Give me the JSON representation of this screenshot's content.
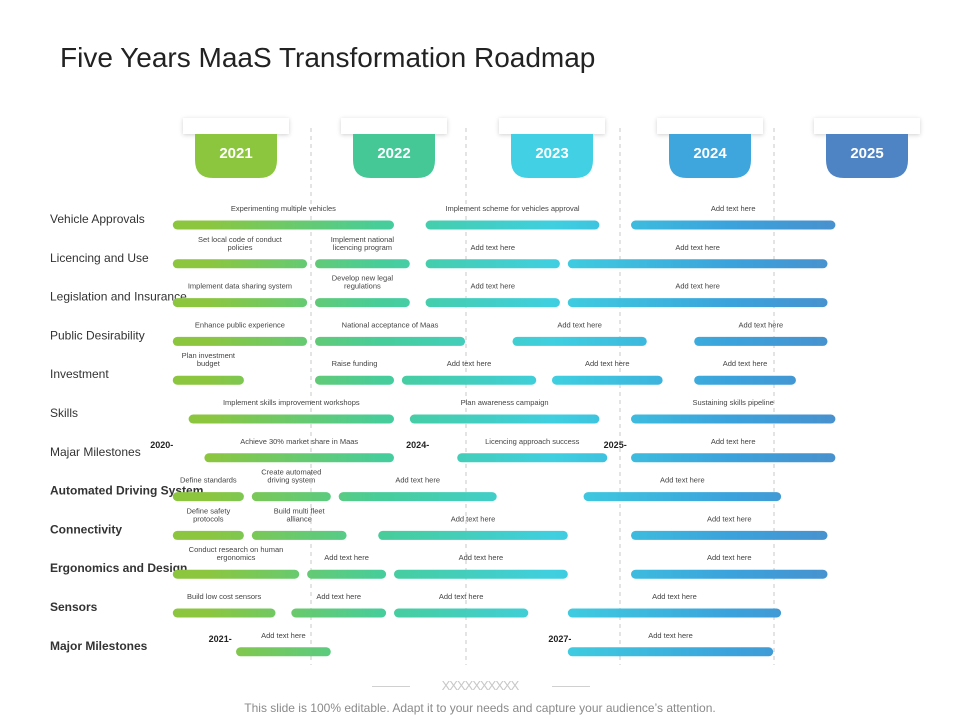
{
  "title": "Five Years MaaS Transformation Roadmap",
  "footer": {
    "decoration": "XXXXXXXXXX",
    "note": "This slide is 100% editable. Adapt it to your needs and capture your audience’s attention."
  },
  "colors": {
    "gradient": [
      "#8cc63f",
      "#47cd9a",
      "#3fcfe0",
      "#3ba3dc",
      "#4f86c6"
    ],
    "divider": "#c8c8c8",
    "label": "#333333",
    "bar_text": "#444444"
  },
  "years": [
    {
      "label": "2021",
      "color": "#8cc63f"
    },
    {
      "label": "2022",
      "color": "#45c796"
    },
    {
      "label": "2023",
      "color": "#41d0e4"
    },
    {
      "label": "2024",
      "color": "#3fa5dd"
    },
    {
      "label": "2025",
      "color": "#4f84c4"
    }
  ],
  "rows": [
    {
      "label": "Vehicle Approvals",
      "bold": false,
      "items": [
        {
          "text": "Experimenting  multiple vehicles",
          "start": 2021.1,
          "end": 2022.5
        },
        {
          "text": "Implement  scheme for vehicles  approval",
          "start": 2022.7,
          "end": 2023.8
        },
        {
          "text": "Add text here",
          "start": 2024.0,
          "end": 2025.3
        }
      ]
    },
    {
      "label": "Licencing and Use",
      "bold": false,
      "items": [
        {
          "text": "Set local code of conduct  policies",
          "start": 2021.1,
          "end": 2021.95
        },
        {
          "text": "Implement  national licencing program",
          "start": 2022.0,
          "end": 2022.6
        },
        {
          "text": "Add text here",
          "start": 2022.7,
          "end": 2023.55
        },
        {
          "text": "Add text here",
          "start": 2023.6,
          "end": 2025.25
        }
      ]
    },
    {
      "label": "Legislation and Insurance",
      "bold": false,
      "items": [
        {
          "text": "Implement data  sharing system",
          "start": 2021.1,
          "end": 2021.95
        },
        {
          "text": "Develop new legal regulations",
          "start": 2022.0,
          "end": 2022.6
        },
        {
          "text": "Add text here",
          "start": 2022.7,
          "end": 2023.55
        },
        {
          "text": "Add text here",
          "start": 2023.6,
          "end": 2025.25
        }
      ]
    },
    {
      "label": "Public Desirability",
      "bold": false,
      "items": [
        {
          "text": "Enhance  public experience",
          "start": 2021.1,
          "end": 2021.95
        },
        {
          "text": "National  acceptance  of Maas",
          "start": 2022.0,
          "end": 2022.95
        },
        {
          "text": "Add text here",
          "start": 2023.25,
          "end": 2024.1
        },
        {
          "text": "Add text here",
          "start": 2024.4,
          "end": 2025.25
        }
      ]
    },
    {
      "label": "Investment",
      "bold": false,
      "items": [
        {
          "text": "Plan investment budget",
          "start": 2021.1,
          "end": 2021.55
        },
        {
          "text": "Raise funding",
          "start": 2022.0,
          "end": 2022.5
        },
        {
          "text": "Add text here",
          "start": 2022.55,
          "end": 2023.4
        },
        {
          "text": "Add text here",
          "start": 2023.5,
          "end": 2024.2
        },
        {
          "text": "Add text here",
          "start": 2024.4,
          "end": 2025.05
        }
      ]
    },
    {
      "label": "Skills",
      "bold": false,
      "items": [
        {
          "text": "Implement  skills improvement  workshops",
          "start": 2021.2,
          "end": 2022.5
        },
        {
          "text": "Plan awareness  campaign",
          "start": 2022.6,
          "end": 2023.8
        },
        {
          "text": "Sustaining  skills pipeline",
          "start": 2024.0,
          "end": 2025.3
        }
      ]
    },
    {
      "label": "Majar Milestones",
      "bold": false,
      "markers": [
        {
          "text": "2020-",
          "at": 2021.03
        },
        {
          "text": "2024-",
          "at": 2022.65
        },
        {
          "text": "2025-",
          "at": 2023.9
        }
      ],
      "items": [
        {
          "text": "Achieve  30% market  share in Maas",
          "start": 2021.3,
          "end": 2022.5
        },
        {
          "text": "Licencing  approach  success",
          "start": 2022.9,
          "end": 2023.85
        },
        {
          "text": "Add text here",
          "start": 2024.0,
          "end": 2025.3
        }
      ]
    },
    {
      "label": "Automated Driving  System",
      "bold": true,
      "items": [
        {
          "text": "Define standards",
          "start": 2021.1,
          "end": 2021.55
        },
        {
          "text": "Create automated driving system design",
          "start": 2021.6,
          "end": 2022.1
        },
        {
          "text": "Add text here",
          "start": 2022.15,
          "end": 2023.15
        },
        {
          "text": "Add text here",
          "start": 2023.7,
          "end": 2024.95
        }
      ]
    },
    {
      "label": "Connectivity",
      "bold": true,
      "items": [
        {
          "text": "Define safety protocols",
          "start": 2021.1,
          "end": 2021.55
        },
        {
          "text": "Build multi fleet alliance",
          "start": 2021.6,
          "end": 2022.2
        },
        {
          "text": "Add text here",
          "start": 2022.4,
          "end": 2023.6
        },
        {
          "text": "Add text here",
          "start": 2024.0,
          "end": 2025.25
        }
      ]
    },
    {
      "label": "Ergonomics  and Design",
      "bold": true,
      "items": [
        {
          "text": "Conduct research on human ergonomics",
          "start": 2021.1,
          "end": 2021.9
        },
        {
          "text": "Add text here",
          "start": 2021.95,
          "end": 2022.45
        },
        {
          "text": "Add text here",
          "start": 2022.5,
          "end": 2023.6
        },
        {
          "text": "Add text here",
          "start": 2024.0,
          "end": 2025.25
        }
      ]
    },
    {
      "label": "Sensors",
      "bold": true,
      "items": [
        {
          "text": "Build low cost sensors",
          "start": 2021.1,
          "end": 2021.75
        },
        {
          "text": "Add text here",
          "start": 2021.85,
          "end": 2022.45
        },
        {
          "text": "Add text here",
          "start": 2022.5,
          "end": 2023.35
        },
        {
          "text": "Add text here",
          "start": 2023.6,
          "end": 2024.95
        }
      ]
    },
    {
      "label": "Major Milestones",
      "bold": true,
      "markers": [
        {
          "text": "2021-",
          "at": 2021.4
        },
        {
          "text": "2027-",
          "at": 2023.55
        }
      ],
      "items": [
        {
          "text": "Add text here",
          "start": 2021.5,
          "end": 2022.1
        },
        {
          "text": "Add text here",
          "start": 2023.6,
          "end": 2024.9
        }
      ]
    }
  ]
}
